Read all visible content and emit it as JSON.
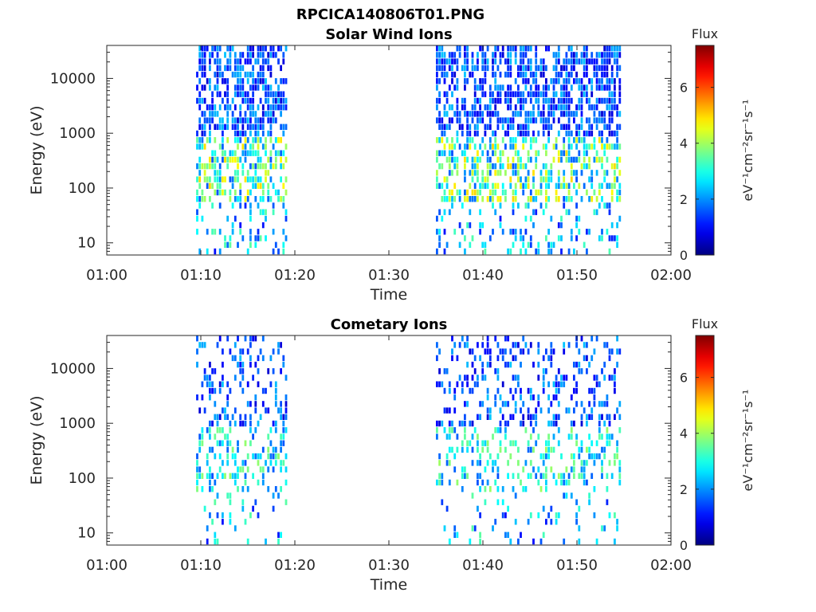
{
  "figure_title": "RPCICA140806T01.PNG",
  "colorbar": {
    "title": "Flux",
    "label": "eV⁻¹cm⁻²sr⁻¹s⁻¹",
    "ticks": [
      0,
      2,
      4,
      6
    ],
    "range": [
      0,
      7.5
    ],
    "colormap": "jet"
  },
  "chart_data": [
    {
      "type": "heatmap",
      "title": "Solar Wind Ions",
      "xlabel": "Time",
      "ylabel": "Energy (eV)",
      "x_ticks": [
        "01:00",
        "01:10",
        "01:20",
        "01:30",
        "01:40",
        "01:50",
        "02:00"
      ],
      "y_ticks": [
        "10",
        "100",
        "1000",
        "10000"
      ],
      "y_scale": "log",
      "ylim": [
        6,
        40000
      ],
      "xlim": [
        "01:00",
        "02:00"
      ],
      "active_intervals": [
        [
          "01:09:30",
          "01:19:00"
        ],
        [
          "01:35:00",
          "01:54:30"
        ]
      ],
      "seed": 11,
      "density": 0.55,
      "level_max": 5.0,
      "high_energy_density": 0.6
    },
    {
      "type": "heatmap",
      "title": "Cometary Ions",
      "xlabel": "Time",
      "ylabel": "Energy (eV)",
      "x_ticks": [
        "01:00",
        "01:10",
        "01:20",
        "01:30",
        "01:40",
        "01:50",
        "02:00"
      ],
      "y_ticks": [
        "10",
        "100",
        "1000",
        "10000"
      ],
      "y_scale": "log",
      "ylim": [
        6,
        40000
      ],
      "xlim": [
        "01:00",
        "02:00"
      ],
      "active_intervals": [
        [
          "01:09:30",
          "01:19:00"
        ],
        [
          "01:35:00",
          "01:54:30"
        ]
      ],
      "seed": 23,
      "density": 0.3,
      "level_max": 4.0,
      "high_energy_density": 0.25
    }
  ]
}
